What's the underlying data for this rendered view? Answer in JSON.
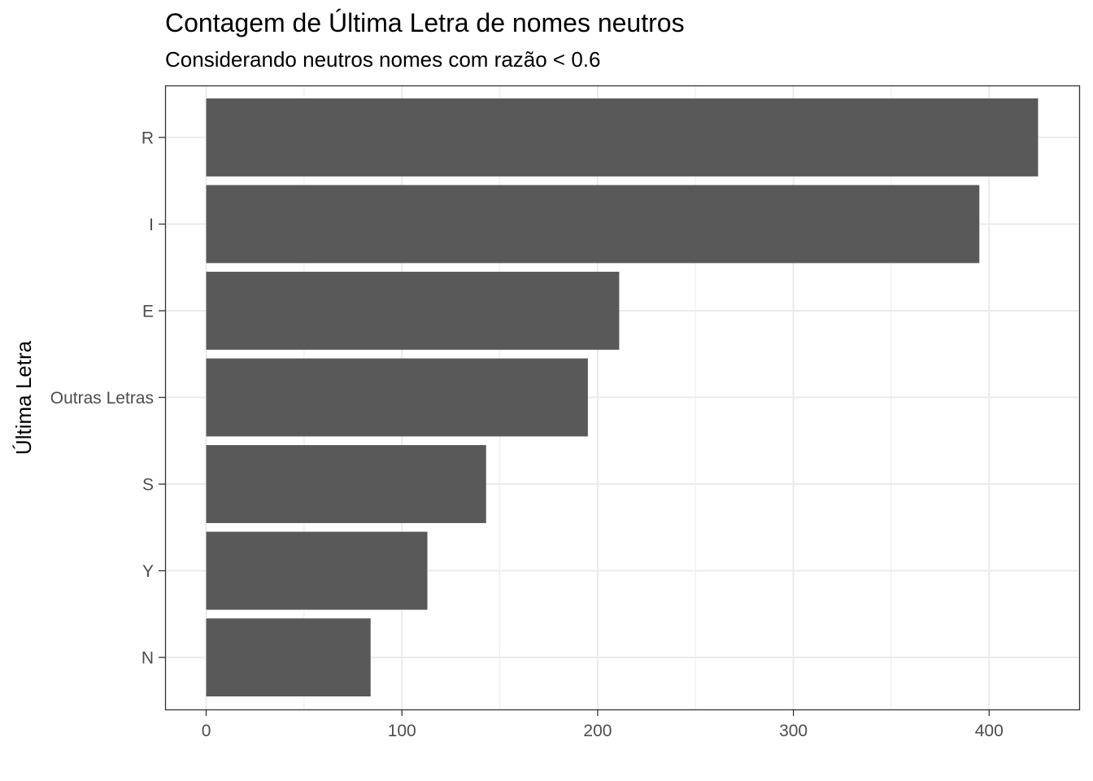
{
  "chart_data": {
    "type": "bar",
    "orientation": "horizontal",
    "title": "Contagem de Última Letra de nomes neutros",
    "subtitle": "Considerando neutros nomes com razão < 0.6",
    "xlabel": "",
    "ylabel": "Última Letra",
    "categories": [
      "R",
      "I",
      "E",
      "Outras Letras",
      "S",
      "Y",
      "N"
    ],
    "values": [
      425,
      395,
      211,
      195,
      143,
      113,
      84
    ],
    "xlim": [
      -21,
      446
    ],
    "xticks": [
      0,
      100,
      200,
      300,
      400
    ],
    "xtick_labels": [
      "0",
      "100",
      "200",
      "300",
      "400"
    ],
    "bar_color": "#595959",
    "grid": true,
    "grid_color": "#ebebeb",
    "panel_border_color": "#333333"
  }
}
